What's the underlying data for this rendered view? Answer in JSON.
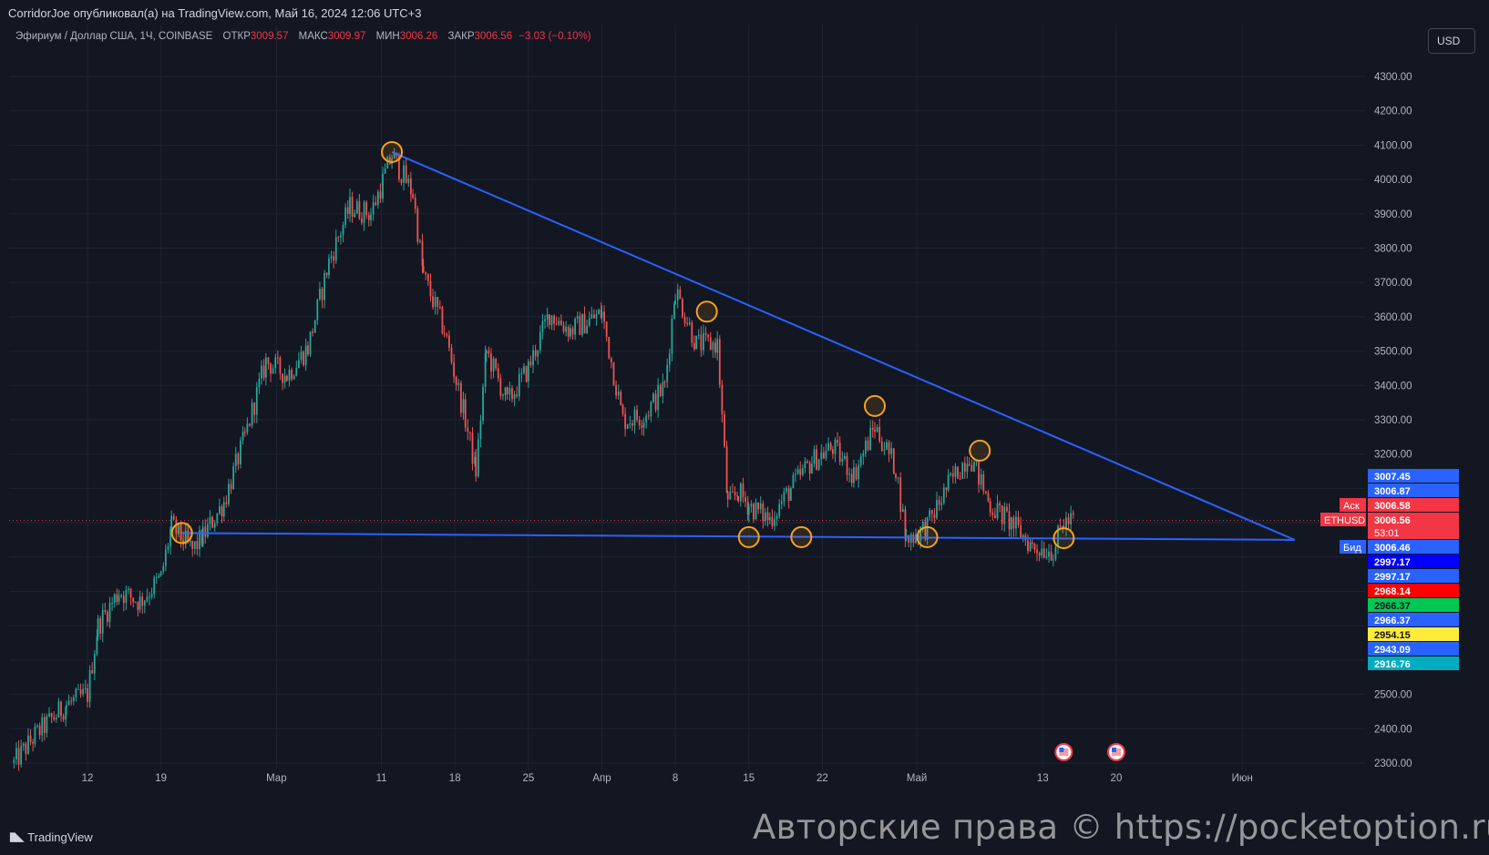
{
  "header": {
    "publish_info": "CorridorJoe опубликовал(а) на TradingView.com, Май 16, 2024 12:06 UTC+3"
  },
  "legend": {
    "symbol": "Эфириум / Доллар США, 1Ч, COINBASE",
    "open_label": "ОТКР",
    "open_value": "3009.57",
    "high_label": "МАКС",
    "high_value": "3009.97",
    "low_label": "МИН",
    "low_value": "3006.26",
    "close_label": "ЗАКР",
    "close_value": "3006.56",
    "change": "−3.03 (−0.10%)"
  },
  "currency_selector": {
    "label": "USD"
  },
  "footer": {
    "logo_text": "TradingView",
    "watermark": "Авторские права © https://pocketoption.ru"
  },
  "colors": {
    "background": "#131722",
    "grid": "#1f2433",
    "axis_text": "#b2b5be",
    "candle_up": "#26a69a",
    "candle_down": "#ef5350",
    "trendline": "#2962ff",
    "marker": "#f7a21b"
  },
  "chart_data": {
    "type": "candlestick",
    "symbol": "ETHUSD",
    "exchange": "COINBASE",
    "interval": "1Ч",
    "title": "Эфириум / Доллар США, 1Ч, COINBASE",
    "y_axis": {
      "ylim": [
        2300,
        4300
      ],
      "ticks": [
        "4300.00",
        "4200.00",
        "4100.00",
        "4000.00",
        "3900.00",
        "3800.00",
        "3700.00",
        "3600.00",
        "3500.00",
        "3400.00",
        "3300.00",
        "3200.00",
        "2500.00",
        "2400.00",
        "2300.00"
      ],
      "scale": "linear"
    },
    "x_axis": {
      "ticks": [
        {
          "label": "12",
          "date": "2024-02-12"
        },
        {
          "label": "19",
          "date": "2024-02-19"
        },
        {
          "label": "Мар",
          "date": "2024-03-01"
        },
        {
          "label": "11",
          "date": "2024-03-11"
        },
        {
          "label": "18",
          "date": "2024-03-18"
        },
        {
          "label": "25",
          "date": "2024-03-25"
        },
        {
          "label": "Апр",
          "date": "2024-04-01"
        },
        {
          "label": "8",
          "date": "2024-04-08"
        },
        {
          "label": "15",
          "date": "2024-04-15"
        },
        {
          "label": "22",
          "date": "2024-04-22"
        },
        {
          "label": "Май",
          "date": "2024-05-01"
        },
        {
          "label": "13",
          "date": "2024-05-13"
        },
        {
          "label": "20",
          "date": "2024-05-20"
        },
        {
          "label": "Июн",
          "date": "2024-06-01"
        }
      ]
    },
    "price_path": [
      [
        "2024-02-05",
        2300
      ],
      [
        "2024-02-07",
        2380
      ],
      [
        "2024-02-10",
        2470
      ],
      [
        "2024-02-12",
        2500
      ],
      [
        "2024-02-13",
        2700
      ],
      [
        "2024-02-15",
        2800
      ],
      [
        "2024-02-17",
        2770
      ],
      [
        "2024-02-19",
        2840
      ],
      [
        "2024-02-20",
        2990
      ],
      [
        "2024-02-22",
        2920
      ],
      [
        "2024-02-23",
        2960
      ],
      [
        "2024-02-25",
        3060
      ],
      [
        "2024-02-27",
        3250
      ],
      [
        "2024-02-29",
        3470
      ],
      [
        "2024-03-02",
        3430
      ],
      [
        "2024-03-04",
        3510
      ],
      [
        "2024-03-06",
        3760
      ],
      [
        "2024-03-08",
        3920
      ],
      [
        "2024-03-10",
        3900
      ],
      [
        "2024-03-12",
        4070
      ],
      [
        "2024-03-14",
        3960
      ],
      [
        "2024-03-15",
        3720
      ],
      [
        "2024-03-17",
        3560
      ],
      [
        "2024-03-19",
        3300
      ],
      [
        "2024-03-20",
        3150
      ],
      [
        "2024-03-21",
        3500
      ],
      [
        "2024-03-23",
        3350
      ],
      [
        "2024-03-25",
        3450
      ],
      [
        "2024-03-27",
        3610
      ],
      [
        "2024-03-29",
        3560
      ],
      [
        "2024-04-01",
        3610
      ],
      [
        "2024-04-03",
        3300
      ],
      [
        "2024-04-05",
        3310
      ],
      [
        "2024-04-07",
        3400
      ],
      [
        "2024-04-08",
        3680
      ],
      [
        "2024-04-10",
        3520
      ],
      [
        "2024-04-12",
        3520
      ],
      [
        "2024-04-13",
        3050
      ],
      [
        "2024-04-14",
        3090
      ],
      [
        "2024-04-15",
        3050
      ],
      [
        "2024-04-17",
        3010
      ],
      [
        "2024-04-19",
        3100
      ],
      [
        "2024-04-21",
        3180
      ],
      [
        "2024-04-23",
        3220
      ],
      [
        "2024-04-25",
        3140
      ],
      [
        "2024-04-27",
        3280
      ],
      [
        "2024-04-29",
        3160
      ],
      [
        "2024-04-30",
        2950
      ],
      [
        "2024-05-02",
        2990
      ],
      [
        "2024-05-04",
        3110
      ],
      [
        "2024-05-06",
        3200
      ],
      [
        "2024-05-08",
        3050
      ],
      [
        "2024-05-10",
        3000
      ],
      [
        "2024-05-12",
        2930
      ],
      [
        "2024-05-14",
        2920
      ],
      [
        "2024-05-15",
        3000
      ],
      [
        "2024-05-16",
        3006.56
      ]
    ],
    "trendlines": [
      {
        "name": "resistance",
        "points": [
          [
            "2024-03-12",
            4080
          ],
          [
            "2024-06-06",
            2950
          ]
        ]
      },
      {
        "name": "support",
        "points": [
          [
            "2024-02-21",
            2970
          ],
          [
            "2024-06-06",
            2950
          ]
        ]
      }
    ],
    "touch_markers": [
      {
        "date": "2024-02-21",
        "price": 2970
      },
      {
        "date": "2024-03-12",
        "price": 4080
      },
      {
        "date": "2024-04-11",
        "price": 3615
      },
      {
        "date": "2024-04-15",
        "price": 2958
      },
      {
        "date": "2024-04-20",
        "price": 2958
      },
      {
        "date": "2024-04-27",
        "price": 3340
      },
      {
        "date": "2024-05-02",
        "price": 2958
      },
      {
        "date": "2024-05-07",
        "price": 3210
      },
      {
        "date": "2024-05-15",
        "price": 2955
      }
    ],
    "price_badges": [
      {
        "label": "",
        "value": "3007.45",
        "bg": "#2962ff",
        "fg": "#ffffff"
      },
      {
        "label": "",
        "value": "3006.87",
        "bg": "#2962ff",
        "fg": "#ffffff"
      },
      {
        "label": "Аск",
        "value": "3006.58",
        "bg": "#f23645",
        "fg": "#ffffff"
      },
      {
        "label": "ETHUSD",
        "value": "3006.56",
        "countdown": "53:01",
        "bg": "#f23645",
        "fg": "#ffffff"
      },
      {
        "label": "Бид",
        "value": "3006.46",
        "bg": "#2962ff",
        "fg": "#ffffff"
      },
      {
        "label": "",
        "value": "2997.17",
        "bg": "#0000ff",
        "fg": "#ffffff"
      },
      {
        "label": "",
        "value": "2997.17",
        "bg": "#2962ff",
        "fg": "#ffffff"
      },
      {
        "label": "",
        "value": "2968.14",
        "bg": "#ff0000",
        "fg": "#ffffff"
      },
      {
        "label": "",
        "value": "2966.37",
        "bg": "#00c853",
        "fg": "#131722"
      },
      {
        "label": "",
        "value": "2966.37",
        "bg": "#2962ff",
        "fg": "#ffffff"
      },
      {
        "label": "",
        "value": "2954.15",
        "bg": "#ffeb3b",
        "fg": "#131722"
      },
      {
        "label": "",
        "value": "2943.09",
        "bg": "#2962ff",
        "fg": "#ffffff"
      },
      {
        "label": "",
        "value": "2916.76",
        "bg": "#00acc1",
        "fg": "#ffffff"
      }
    ],
    "current_price_line": 3006.56,
    "grid": true,
    "events": [
      {
        "date": "2024-05-15",
        "icon": "us-flag-icon"
      },
      {
        "date": "2024-05-20",
        "icon": "us-flag-icon"
      }
    ]
  }
}
